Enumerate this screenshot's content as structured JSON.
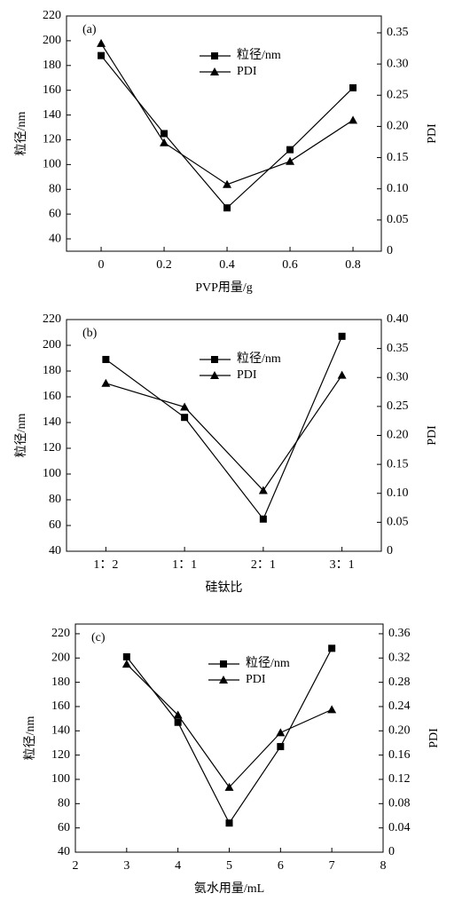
{
  "chart_data": [
    {
      "type": "line",
      "annotation": "(a)",
      "xlabel": "PVP用量/g",
      "ylabel": "粒径/nm",
      "y2label": "PDI",
      "x": [
        0,
        0.2,
        0.4,
        0.6,
        0.8
      ],
      "xlim": [
        -0.11,
        0.89
      ],
      "xticks": [
        0,
        0.2,
        0.4,
        0.6,
        0.8
      ],
      "ylim": [
        30,
        220
      ],
      "yticks": [
        40,
        60,
        80,
        100,
        120,
        140,
        160,
        180,
        200,
        220
      ],
      "y2lim": [
        0,
        0.377
      ],
      "y2ticks": [
        0,
        {
          "value": 0.05,
          "label": "0.05"
        },
        {
          "value": 0.1,
          "label": "0.10"
        },
        {
          "value": 0.15,
          "label": "0.15"
        },
        {
          "value": 0.2,
          "label": "0.20"
        },
        {
          "value": 0.25,
          "label": "0.25"
        },
        {
          "value": 0.3,
          "label": "0.30"
        },
        {
          "value": 0.35,
          "label": "0.35"
        }
      ],
      "series": [
        {
          "name": "粒径/nm",
          "color": "#000000",
          "marker": "square",
          "values": [
            188,
            125,
            65,
            112,
            162
          ]
        },
        {
          "name": "PDI",
          "color": "#000000",
          "marker": "triangle",
          "axis": "y2",
          "values": [
            0.333,
            0.174,
            0.107,
            0.144,
            0.21
          ]
        }
      ]
    },
    {
      "type": "line",
      "annotation": "(b)",
      "xlabel": "硅钛比",
      "ylabel": "粒径/nm",
      "y2label": "PDI",
      "categories": [
        "1：2",
        "1：1",
        "2：1",
        "3：1"
      ],
      "ylim": [
        40,
        220
      ],
      "yticks": [
        40,
        60,
        80,
        100,
        120,
        140,
        160,
        180,
        200,
        220
      ],
      "y2lim": [
        0,
        0.4
      ],
      "y2ticks": [
        0,
        {
          "value": 0.05,
          "label": "0.05"
        },
        {
          "value": 0.1,
          "label": "0.10"
        },
        {
          "value": 0.15,
          "label": "0.15"
        },
        {
          "value": 0.2,
          "label": "0.20"
        },
        {
          "value": 0.25,
          "label": "0.25"
        },
        {
          "value": 0.3,
          "label": "0.30"
        },
        {
          "value": 0.35,
          "label": "0.35"
        },
        {
          "value": 0.4,
          "label": "0.40"
        }
      ],
      "series": [
        {
          "name": "粒径/nm",
          "color": "#000000",
          "marker": "square",
          "values": [
            189,
            144,
            65,
            207
          ]
        },
        {
          "name": "PDI",
          "color": "#000000",
          "marker": "triangle",
          "axis": "y2",
          "values": [
            0.29,
            0.249,
            0.105,
            0.304
          ]
        }
      ]
    },
    {
      "type": "line",
      "annotation": "(c)",
      "xlabel": "氨水用量/mL",
      "ylabel": "粒径/nm",
      "y2label": "PDI",
      "x": [
        3,
        4,
        5,
        6,
        7
      ],
      "xlim": [
        2,
        8
      ],
      "xticks": [
        2,
        3,
        4,
        5,
        6,
        7,
        8
      ],
      "ylim": [
        40,
        228
      ],
      "yticks": [
        40,
        60,
        80,
        100,
        120,
        140,
        160,
        180,
        200,
        220
      ],
      "y2lim": [
        0,
        0.376
      ],
      "y2ticks": [
        0,
        0.04,
        0.08,
        0.12,
        0.16,
        {
          "value": 0.2,
          "label": "0.20"
        },
        0.24,
        0.28,
        0.32,
        0.36
      ],
      "series": [
        {
          "name": "粒径/nm",
          "color": "#000000",
          "marker": "square",
          "values": [
            201,
            147,
            64,
            127,
            208
          ]
        },
        {
          "name": "PDI",
          "color": "#000000",
          "marker": "triangle",
          "axis": "y2",
          "values": [
            0.31,
            0.226,
            0.107,
            0.197,
            0.235
          ]
        }
      ]
    }
  ]
}
